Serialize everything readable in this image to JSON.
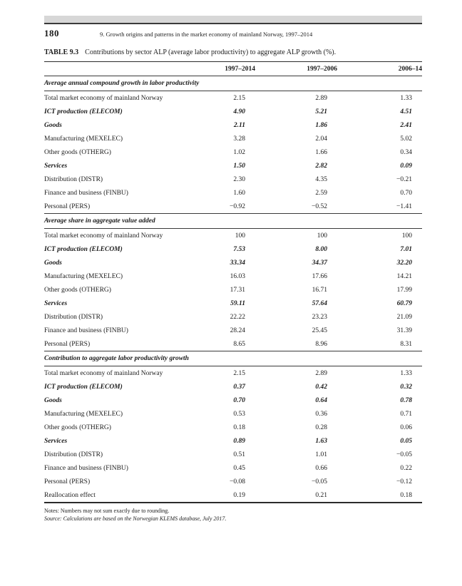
{
  "page": {
    "number": "180",
    "running_head": "9. Growth origins and patterns in the market economy of mainland Norway, 1997–2014"
  },
  "table": {
    "label": "TABLE 9.3",
    "caption": "Contributions by sector ALP (average labor productivity) to aggregate ALP growth (%).",
    "columns": [
      "1997–2014",
      "1997–2006",
      "2006–14"
    ],
    "sections": [
      {
        "header": "Average annual compound growth in labor productivity",
        "rows": [
          {
            "label": "Total market economy of mainland Norway",
            "values": [
              "2.15",
              "2.89",
              "1.33"
            ],
            "emphasis": false
          },
          {
            "label": "ICT production (ELECOM)",
            "values": [
              "4.90",
              "5.21",
              "4.51"
            ],
            "emphasis": true
          },
          {
            "label": "Goods",
            "values": [
              "2.11",
              "1.86",
              "2.41"
            ],
            "emphasis": true
          },
          {
            "label": "Manufacturing (MEXELEC)",
            "values": [
              "3.28",
              "2.04",
              "5.02"
            ],
            "emphasis": false
          },
          {
            "label": "Other goods (OTHERG)",
            "values": [
              "1.02",
              "1.66",
              "0.34"
            ],
            "emphasis": false
          },
          {
            "label": "Services",
            "values": [
              "1.50",
              "2.82",
              "0.09"
            ],
            "emphasis": true
          },
          {
            "label": "Distribution (DISTR)",
            "values": [
              "2.30",
              "4.35",
              "−0.21"
            ],
            "emphasis": false
          },
          {
            "label": "Finance and business (FINBU)",
            "values": [
              "1.60",
              "2.59",
              "0.70"
            ],
            "emphasis": false
          },
          {
            "label": "Personal (PERS)",
            "values": [
              "−0.92",
              "−0.52",
              "−1.41"
            ],
            "emphasis": false
          }
        ]
      },
      {
        "header": "Average share in aggregate value added",
        "rows": [
          {
            "label": "Total market economy of mainland Norway",
            "values": [
              "100",
              "100",
              "100"
            ],
            "emphasis": false
          },
          {
            "label": "ICT production (ELECOM)",
            "values": [
              "7.53",
              "8.00",
              "7.01"
            ],
            "emphasis": true
          },
          {
            "label": "Goods",
            "values": [
              "33.34",
              "34.37",
              "32.20"
            ],
            "emphasis": true
          },
          {
            "label": "Manufacturing (MEXELEC)",
            "values": [
              "16.03",
              "17.66",
              "14.21"
            ],
            "emphasis": false
          },
          {
            "label": "Other goods (OTHERG)",
            "values": [
              "17.31",
              "16.71",
              "17.99"
            ],
            "emphasis": false
          },
          {
            "label": "Services",
            "values": [
              "59.11",
              "57.64",
              "60.79"
            ],
            "emphasis": true
          },
          {
            "label": "Distribution (DISTR)",
            "values": [
              "22.22",
              "23.23",
              "21.09"
            ],
            "emphasis": false
          },
          {
            "label": "Finance and business (FINBU)",
            "values": [
              "28.24",
              "25.45",
              "31.39"
            ],
            "emphasis": false
          },
          {
            "label": "Personal (PERS)",
            "values": [
              "8.65",
              "8.96",
              "8.31"
            ],
            "emphasis": false
          }
        ]
      },
      {
        "header": "Contribution to aggregate labor productivity growth",
        "rows": [
          {
            "label": "Total market economy of mainland Norway",
            "values": [
              "2.15",
              "2.89",
              "1.33"
            ],
            "emphasis": false
          },
          {
            "label": "ICT production (ELECOM)",
            "values": [
              "0.37",
              "0.42",
              "0.32"
            ],
            "emphasis": true
          },
          {
            "label": "Goods",
            "values": [
              "0.70",
              "0.64",
              "0.78"
            ],
            "emphasis": true
          },
          {
            "label": "Manufacturing (MEXELEC)",
            "values": [
              "0.53",
              "0.36",
              "0.71"
            ],
            "emphasis": false
          },
          {
            "label": "Other goods (OTHERG)",
            "values": [
              "0.18",
              "0.28",
              "0.06"
            ],
            "emphasis": false
          },
          {
            "label": "Services",
            "values": [
              "0.89",
              "1.63",
              "0.05"
            ],
            "emphasis": true
          },
          {
            "label": "Distribution (DISTR)",
            "values": [
              "0.51",
              "1.01",
              "−0.05"
            ],
            "emphasis": false
          },
          {
            "label": "Finance and business (FINBU)",
            "values": [
              "0.45",
              "0.66",
              "0.22"
            ],
            "emphasis": false
          },
          {
            "label": "Personal (PERS)",
            "values": [
              "−0.08",
              "−0.05",
              "−0.12"
            ],
            "emphasis": false
          },
          {
            "label": "Reallocation effect",
            "values": [
              "0.19",
              "0.21",
              "0.18"
            ],
            "emphasis": false
          }
        ]
      }
    ],
    "notes": "Notes: Numbers may not sum exactly due to rounding.",
    "source": "Source: Calculations are based on the Norwegian KLEMS database, July 2017."
  },
  "colors": {
    "band_gray": "#d7d7d7",
    "rule_dark": "#2b2b2b",
    "text": "#1b1b1b"
  }
}
